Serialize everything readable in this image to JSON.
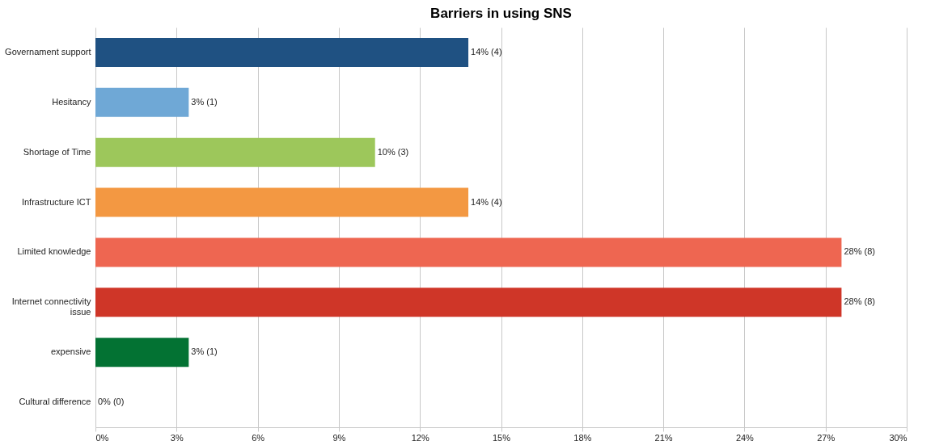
{
  "chart_data": {
    "type": "bar",
    "orientation": "horizontal",
    "title": "Barriers in using SNS",
    "categories": [
      "Governament support",
      "Hesitancy",
      "Shortage of Time",
      "Infrastructure ICT",
      "Limited knowledge",
      "Internet connectivity issue",
      "expensive",
      "Cultural difference"
    ],
    "values": [
      13.79,
      3.45,
      10.34,
      13.79,
      27.59,
      27.59,
      3.45,
      0
    ],
    "colors": [
      "#1f5182",
      "#6fa8d6",
      "#9dc75b",
      "#f39842",
      "#ee6651",
      "#cf3628",
      "#037233",
      "#7f7f7f"
    ],
    "value_labels": [
      "14% (4)",
      "3% (1)",
      "10% (3)",
      "14% (4)",
      "28% (8)",
      "28% (8)",
      "3% (1)",
      "0% (0)"
    ],
    "xlim": [
      0,
      30
    ],
    "xticks": [
      {
        "value": 0,
        "label": "0%"
      },
      {
        "value": 3,
        "label": "3%"
      },
      {
        "value": 6,
        "label": "6%"
      },
      {
        "value": 9,
        "label": "9%"
      },
      {
        "value": 12,
        "label": "12%"
      },
      {
        "value": 15,
        "label": "15%"
      },
      {
        "value": 18,
        "label": "18%"
      },
      {
        "value": 21,
        "label": "21%"
      },
      {
        "value": 24,
        "label": "24%"
      },
      {
        "value": 27,
        "label": "27%"
      },
      {
        "value": 30,
        "label": "30%"
      }
    ],
    "grid": "x",
    "legend": false
  }
}
